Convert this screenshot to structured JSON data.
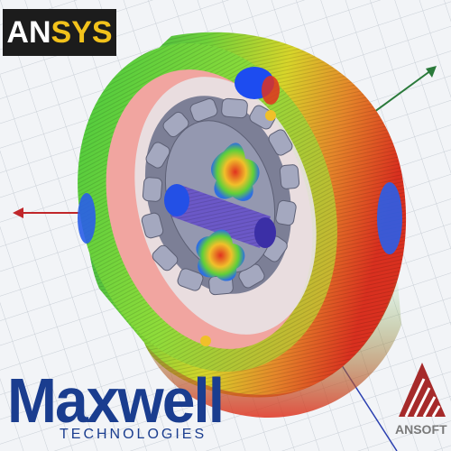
{
  "logos": {
    "ansys_text": "ANSYS",
    "maxwell_word": "Maxwell",
    "maxwell_sub": "TECHNOLOGIES",
    "ansoft_text": "ANSOFT"
  },
  "colors": {
    "ansys_bg": "#1c1c1c",
    "ansys_yellow": "#f2c21b",
    "maxwell_blue": "#1a3d8f",
    "ansoft_gray": "#7a7a7a",
    "field_low": "#1d4cf0",
    "field_mid": "#35c23d",
    "field_high": "#e0321f"
  },
  "icons": [
    "red-arrow-left",
    "green-arrow-upper-right",
    "blue-axis-line"
  ]
}
